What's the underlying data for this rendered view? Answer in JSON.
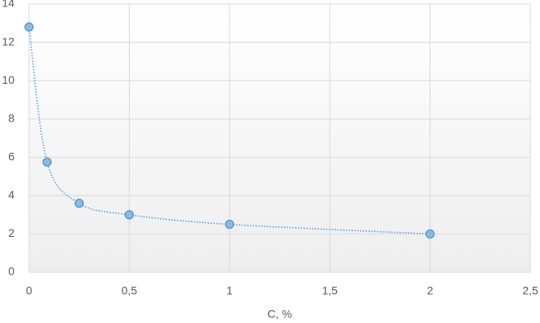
{
  "chart_data": {
    "type": "scatter",
    "x_label": "C, %",
    "series": [
      {
        "color": "#5b9bd5",
        "x": [
          0,
          0.09,
          0.25,
          0.5,
          1,
          2
        ],
        "values": [
          12.8,
          5.75,
          3.6,
          3.0,
          2.5,
          2.0
        ]
      }
    ],
    "xlim": [
      0,
      2.5
    ],
    "xticks": [
      0,
      {
        "value": 0.5,
        "label": "0,5"
      },
      1,
      {
        "value": 1.5,
        "label": "1,5"
      },
      2,
      {
        "value": 2.5,
        "label": "2,5"
      }
    ],
    "ylim": [
      0,
      14
    ],
    "yticks": [
      0,
      2,
      4,
      6,
      8,
      10,
      12,
      14
    ],
    "grid": true
  }
}
